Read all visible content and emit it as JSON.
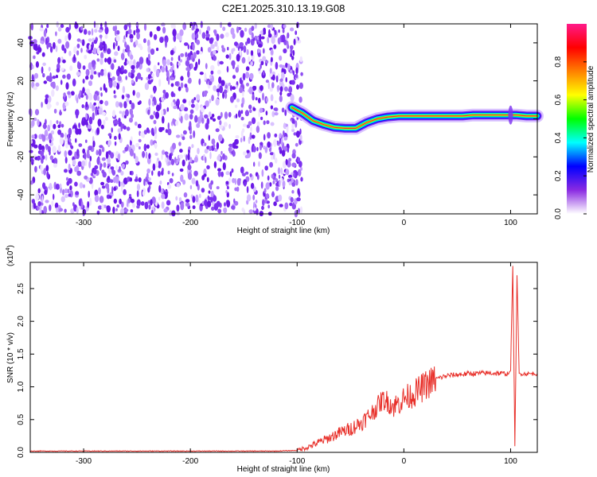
{
  "title": "C2E1.2025.310.13.19.G08",
  "chart_data": [
    {
      "type": "heatmap",
      "xlabel": "Height of straight line (km)",
      "ylabel": "Frequency (Hz)",
      "xlim": [
        -350,
        125
      ],
      "ylim": [
        -50,
        50
      ],
      "xticks": [
        -300,
        -200,
        -100,
        0,
        100
      ],
      "yticks": [
        -40,
        -20,
        0,
        20,
        40
      ],
      "noise_region_x": [
        -350,
        -100
      ],
      "signal_track": {
        "x": [
          -105,
          -95,
          -85,
          -75,
          -65,
          -55,
          -45,
          -35,
          -25,
          -15,
          -5,
          5,
          15,
          25,
          35,
          45,
          55,
          65,
          75,
          85,
          95,
          100,
          105,
          115,
          125
        ],
        "y": [
          6,
          3,
          -1,
          -3,
          -4.5,
          -5,
          -5,
          -2,
          0,
          1,
          1.5,
          1.5,
          1.5,
          1.5,
          1.5,
          1.5,
          1.5,
          2,
          2,
          2,
          2,
          2,
          2,
          1.5,
          1.5
        ]
      },
      "colorbar": {
        "label": "Normalized spectral amplitude",
        "range": [
          0,
          1
        ],
        "ticks": [
          "0.0",
          "0.2",
          "0.4",
          "0.6",
          "0.8"
        ],
        "colors": [
          "#ffffff",
          "#8a2be2",
          "#0000ff",
          "#00ffff",
          "#00ff00",
          "#ffff00",
          "#ff8000",
          "#ff0000",
          "#ff1a8a"
        ]
      }
    },
    {
      "type": "line",
      "xlabel": "Height of straight line (km)",
      "ylabel": "SNR (10 * v/v)",
      "yscale_label": "(x10",
      "yscale_exp": "4",
      "yscale_close": ")",
      "xlim": [
        -350,
        125
      ],
      "ylim": [
        0,
        2.9
      ],
      "xticks": [
        -300,
        -200,
        -100,
        0,
        100
      ],
      "yticks": [
        "0.0",
        "0.5",
        "1.0",
        "1.5",
        "2.0",
        "2.5"
      ],
      "series": [
        {
          "color": "#e8302a",
          "x": [
            -350,
            -120,
            -100,
            -90,
            -80,
            -70,
            -60,
            -50,
            -40,
            -30,
            -25,
            -20,
            -15,
            -10,
            -5,
            0,
            10,
            20,
            30,
            40,
            60,
            80,
            98,
            100,
            102,
            104,
            106,
            108,
            110,
            125
          ],
          "y": [
            0.02,
            0.02,
            0.03,
            0.08,
            0.15,
            0.22,
            0.3,
            0.36,
            0.45,
            0.6,
            0.7,
            0.8,
            0.78,
            0.7,
            0.75,
            0.82,
            0.9,
            1.02,
            1.12,
            1.17,
            1.2,
            1.21,
            1.2,
            1.25,
            2.85,
            0.1,
            2.7,
            1.2,
            1.2,
            1.2
          ]
        }
      ]
    }
  ],
  "colors": {
    "axis": "#000000",
    "line": "#e8302a",
    "noise": "#7b2ff0"
  }
}
